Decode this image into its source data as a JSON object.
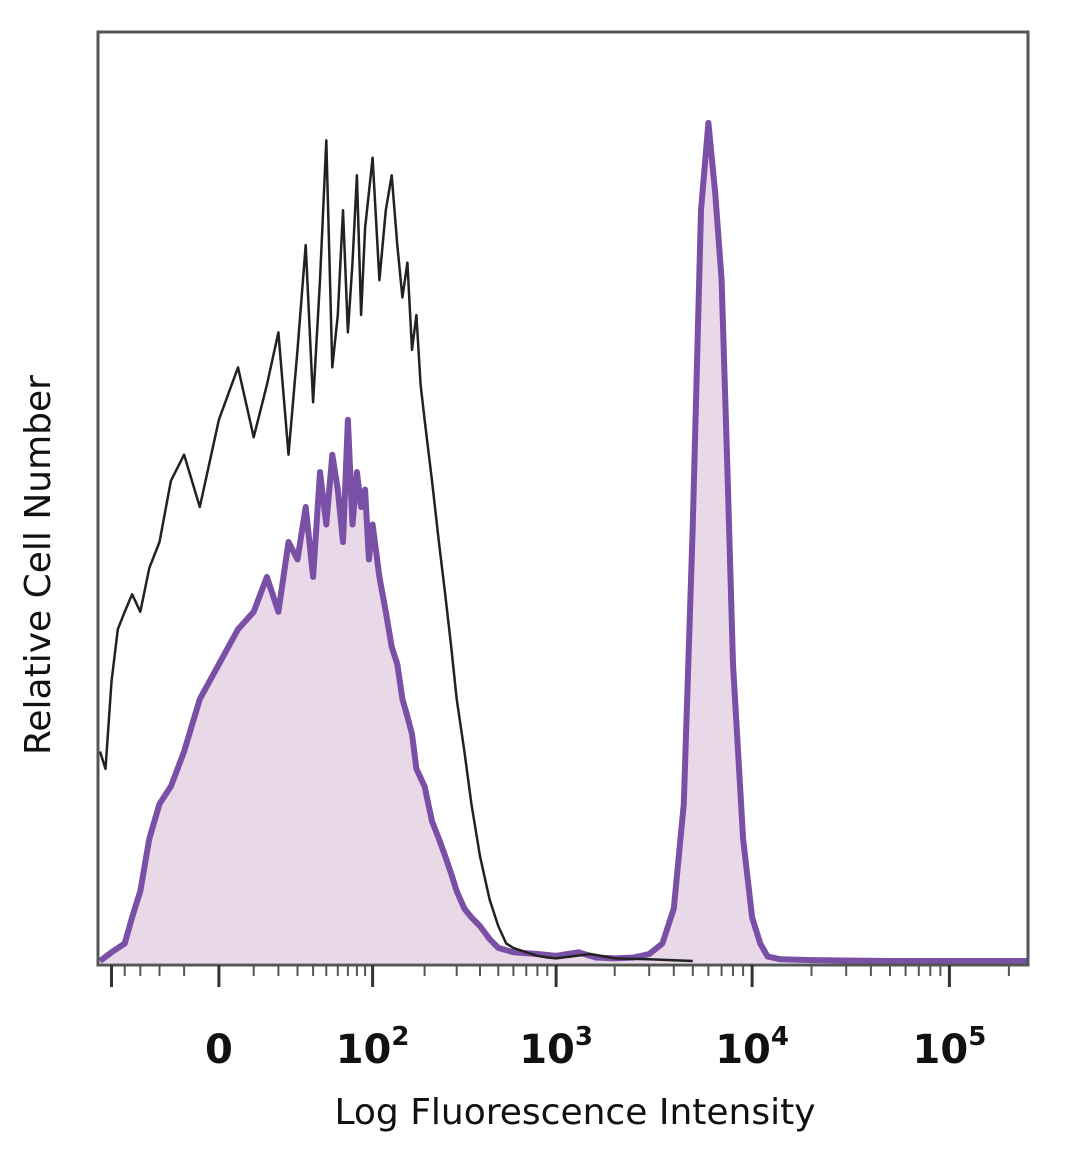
{
  "chart_data": {
    "type": "area",
    "xlabel": "Log Fluorescence Intensity",
    "ylabel": "Relative Cell Number",
    "x_scale": "biexponential",
    "xlim": [
      -60,
      250000
    ],
    "ylim": [
      0,
      1.0
    ],
    "grid": false,
    "x_ticks": [
      {
        "value": 0,
        "base": "0",
        "exp": ""
      },
      {
        "value": 100,
        "base": "10",
        "exp": "2"
      },
      {
        "value": 1000,
        "base": "10",
        "exp": "3"
      },
      {
        "value": 10000,
        "base": "10",
        "exp": "4"
      },
      {
        "value": 100000,
        "base": "10",
        "exp": "5"
      }
    ],
    "series": [
      {
        "style": "outline",
        "color": "#222222",
        "x": [
          -60,
          -55,
          -50,
          -45,
          -40,
          -35,
          -30,
          -25,
          -20,
          -15,
          -10,
          -5,
          0,
          5,
          10,
          15,
          20,
          25,
          30,
          35,
          40,
          45,
          50,
          55,
          60,
          65,
          70,
          75,
          80,
          85,
          90,
          95,
          100,
          110,
          120,
          130,
          140,
          150,
          160,
          170,
          180,
          190,
          200,
          220,
          240,
          260,
          280,
          300,
          330,
          360,
          400,
          450,
          500,
          550,
          600,
          700,
          800,
          900,
          1000,
          1500,
          2000,
          3000,
          5000
        ],
        "y": [
          0.24,
          0.22,
          0.32,
          0.38,
          0.4,
          0.42,
          0.4,
          0.45,
          0.48,
          0.55,
          0.58,
          0.52,
          0.62,
          0.68,
          0.6,
          0.66,
          0.72,
          0.58,
          0.7,
          0.82,
          0.64,
          0.78,
          0.94,
          0.68,
          0.74,
          0.86,
          0.72,
          0.8,
          0.9,
          0.74,
          0.84,
          0.88,
          0.92,
          0.78,
          0.86,
          0.9,
          0.82,
          0.76,
          0.8,
          0.7,
          0.74,
          0.66,
          0.62,
          0.55,
          0.48,
          0.42,
          0.36,
          0.3,
          0.24,
          0.18,
          0.12,
          0.07,
          0.04,
          0.02,
          0.015,
          0.01,
          0.006,
          0.004,
          0.003,
          0.008,
          0.003,
          0.002,
          0.0
        ]
      },
      {
        "style": "filled",
        "color": "#7a4fa6",
        "fill": "#e8d8e8",
        "x": [
          -60,
          -50,
          -40,
          -35,
          -30,
          -25,
          -20,
          -15,
          -10,
          -5,
          0,
          5,
          10,
          15,
          20,
          25,
          30,
          35,
          40,
          45,
          50,
          55,
          60,
          65,
          70,
          75,
          80,
          85,
          90,
          95,
          100,
          110,
          120,
          130,
          140,
          150,
          160,
          170,
          180,
          200,
          220,
          240,
          260,
          280,
          300,
          330,
          360,
          400,
          450,
          500,
          600,
          800,
          1000,
          1300,
          1600,
          2000,
          2500,
          3000,
          3500,
          4000,
          4500,
          5000,
          5500,
          6000,
          6500,
          7000,
          7500,
          8000,
          9000,
          10000,
          11000,
          12000,
          14000,
          20000,
          50000,
          100000,
          250000
        ],
        "y": [
          0.0,
          0.01,
          0.02,
          0.05,
          0.08,
          0.14,
          0.18,
          0.2,
          0.24,
          0.3,
          0.34,
          0.38,
          0.4,
          0.44,
          0.4,
          0.48,
          0.46,
          0.52,
          0.44,
          0.56,
          0.5,
          0.58,
          0.54,
          0.48,
          0.62,
          0.5,
          0.56,
          0.52,
          0.54,
          0.46,
          0.5,
          0.44,
          0.4,
          0.36,
          0.34,
          0.3,
          0.28,
          0.26,
          0.22,
          0.2,
          0.16,
          0.14,
          0.12,
          0.1,
          0.08,
          0.06,
          0.05,
          0.04,
          0.025,
          0.015,
          0.01,
          0.008,
          0.006,
          0.01,
          0.004,
          0.003,
          0.004,
          0.008,
          0.02,
          0.06,
          0.18,
          0.5,
          0.86,
          0.96,
          0.88,
          0.78,
          0.56,
          0.34,
          0.14,
          0.05,
          0.02,
          0.005,
          0.002,
          0.001,
          0.0,
          0.0,
          0.0
        ]
      }
    ]
  }
}
